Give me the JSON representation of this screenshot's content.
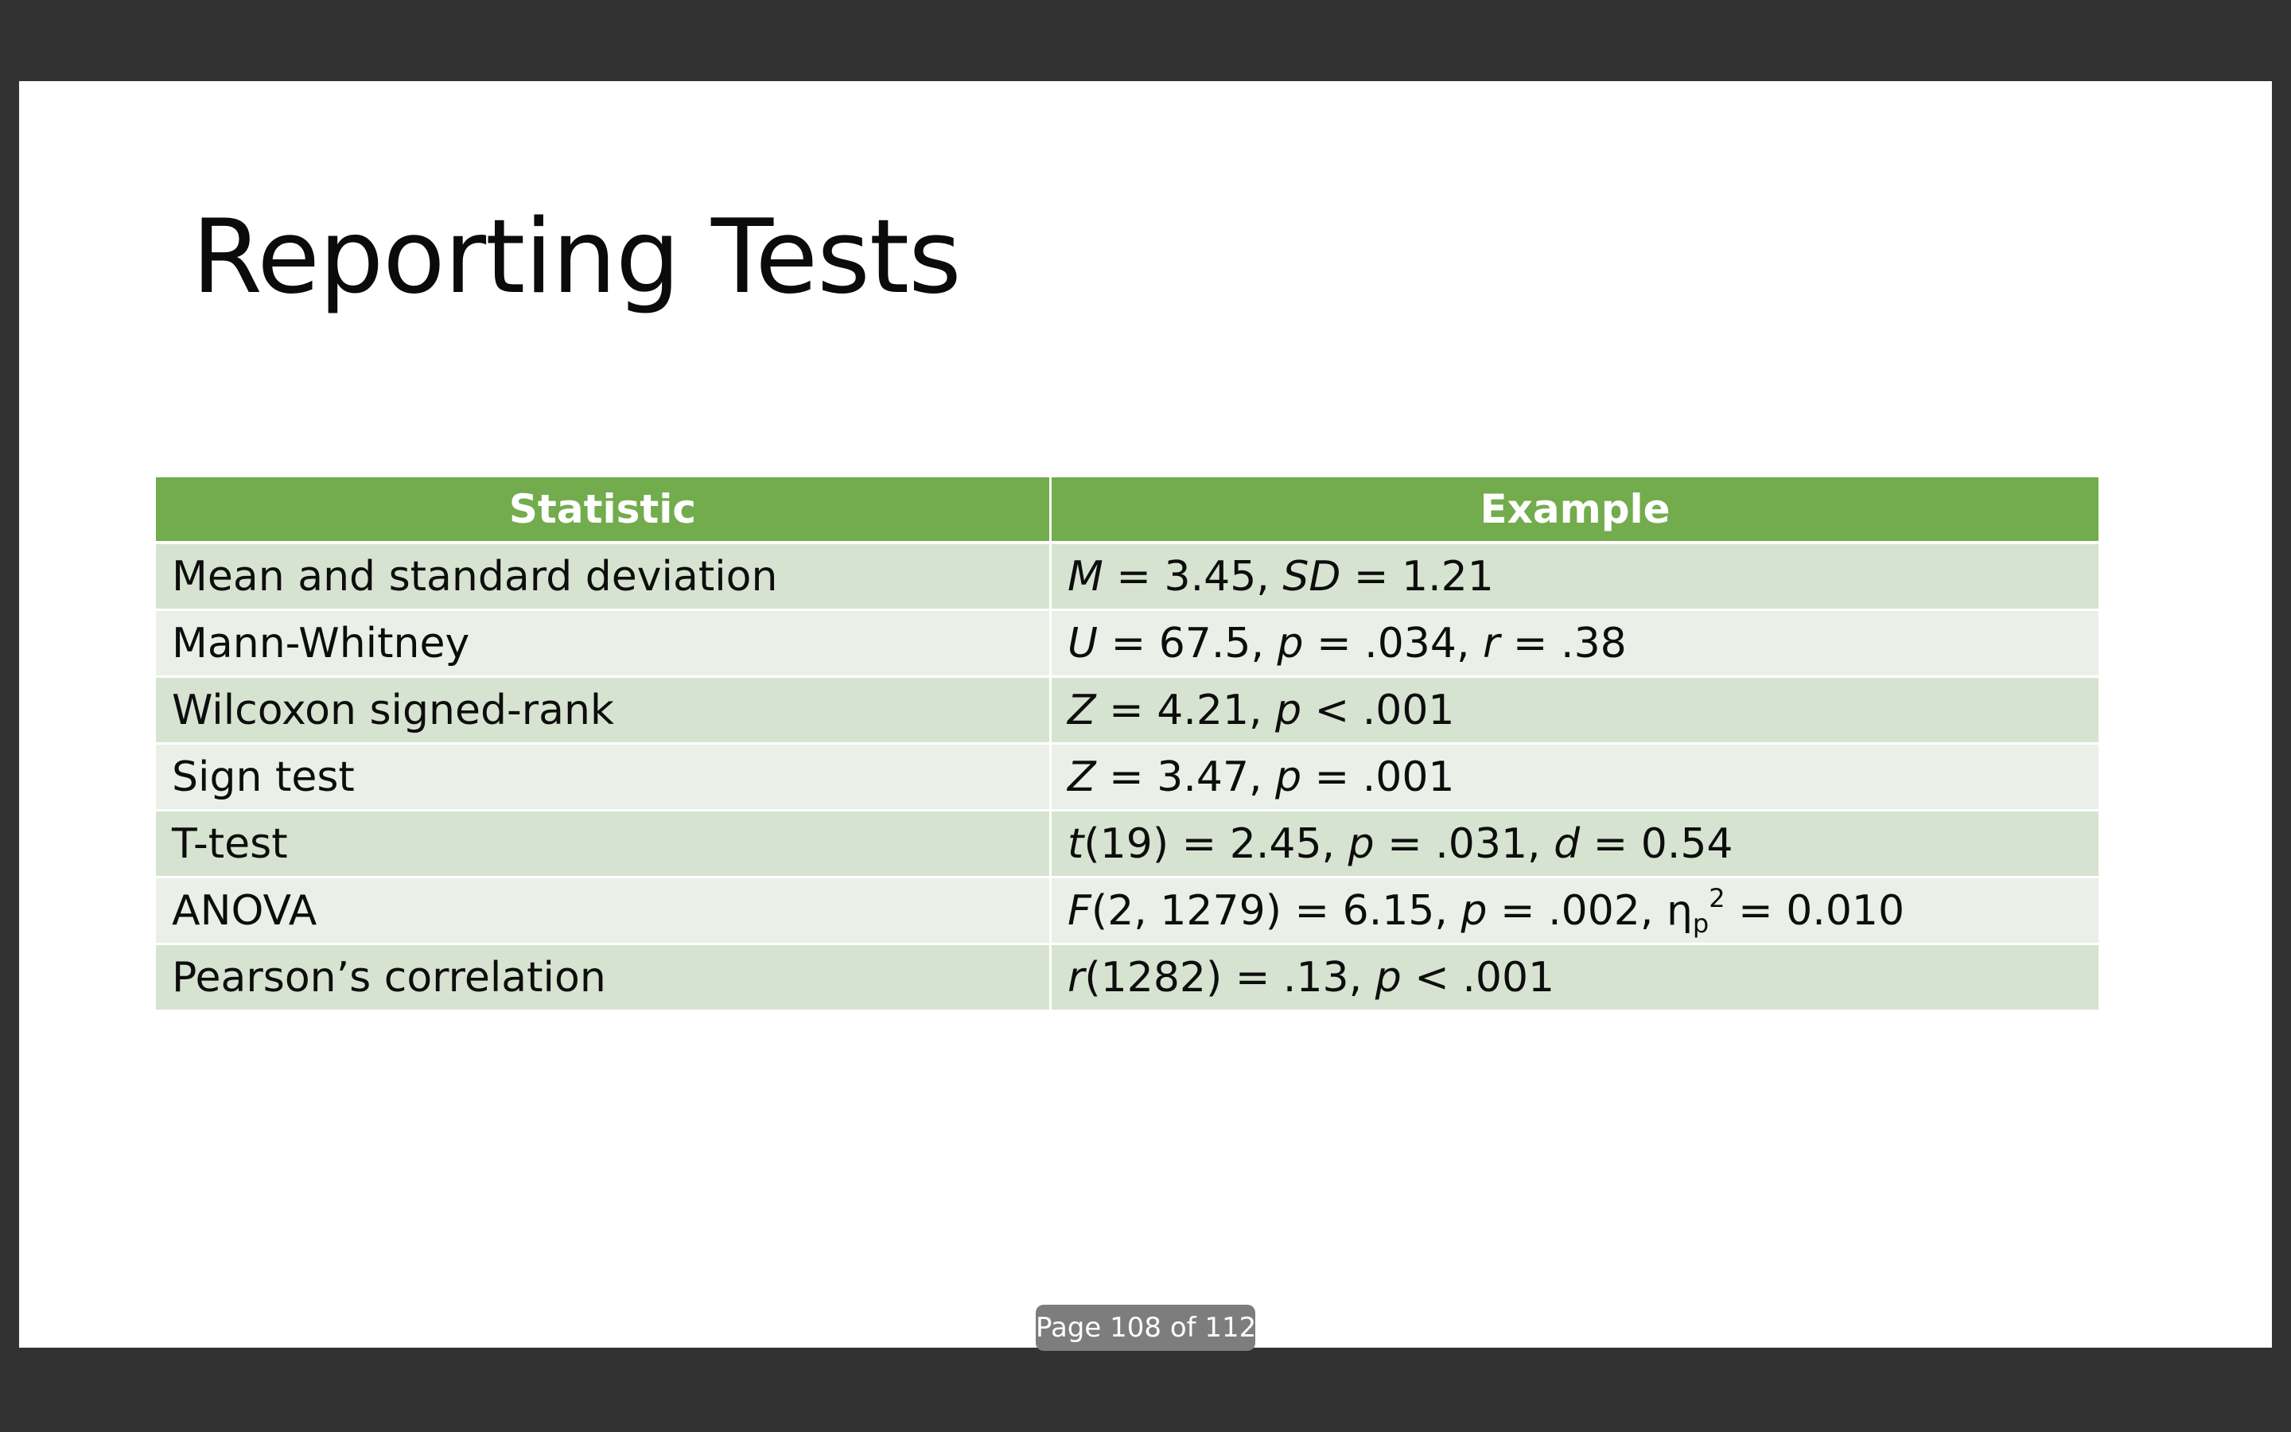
{
  "slide": {
    "title": "Reporting Tests"
  },
  "table": {
    "headers": [
      "Statistic",
      "Example"
    ],
    "rows": [
      {
        "statistic": "Mean and standard deviation",
        "example": [
          {
            "t": "M",
            "i": true
          },
          {
            "t": " = 3.45, "
          },
          {
            "t": "SD",
            "i": true
          },
          {
            "t": " = 1.21"
          }
        ]
      },
      {
        "statistic": "Mann-Whitney",
        "example": [
          {
            "t": "U",
            "i": true
          },
          {
            "t": " = 67.5, "
          },
          {
            "t": "p",
            "i": true
          },
          {
            "t": " = .034, "
          },
          {
            "t": "r",
            "i": true
          },
          {
            "t": " = .38"
          }
        ]
      },
      {
        "statistic": "Wilcoxon signed-rank",
        "example": [
          {
            "t": "Z",
            "i": true
          },
          {
            "t": " = 4.21, "
          },
          {
            "t": "p",
            "i": true
          },
          {
            "t": " < .001"
          }
        ]
      },
      {
        "statistic": "Sign test",
        "example": [
          {
            "t": "Z",
            "i": true
          },
          {
            "t": " = 3.47, "
          },
          {
            "t": "p",
            "i": true
          },
          {
            "t": " = .001"
          }
        ]
      },
      {
        "statistic": "T-test",
        "example": [
          {
            "t": "t",
            "i": true
          },
          {
            "t": "(19) = 2.45, "
          },
          {
            "t": "p",
            "i": true
          },
          {
            "t": " = .031, "
          },
          {
            "t": "d",
            "i": true
          },
          {
            "t": " = 0.54"
          }
        ]
      },
      {
        "statistic": "ANOVA",
        "example": [
          {
            "t": "F",
            "i": true
          },
          {
            "t": "(2, 1279) = 6.15, "
          },
          {
            "t": "p",
            "i": true
          },
          {
            "t": " = .002, η"
          },
          {
            "t": "p",
            "sub": true
          },
          {
            "t": "2",
            "sup": true
          },
          {
            "t": " = 0.010"
          }
        ]
      },
      {
        "statistic": "Pearson’s correlation",
        "example": [
          {
            "t": "r",
            "i": true
          },
          {
            "t": "(1282) = .13, "
          },
          {
            "t": "p",
            "i": true
          },
          {
            "t": " < .001"
          }
        ]
      }
    ]
  },
  "viewer": {
    "page_indicator": "Page 108 of 112"
  },
  "colors": {
    "header_green": "#72ac4d",
    "row_dark": "#d6e3d0",
    "row_light": "#eaf0e7",
    "viewer_background": "#323232"
  }
}
